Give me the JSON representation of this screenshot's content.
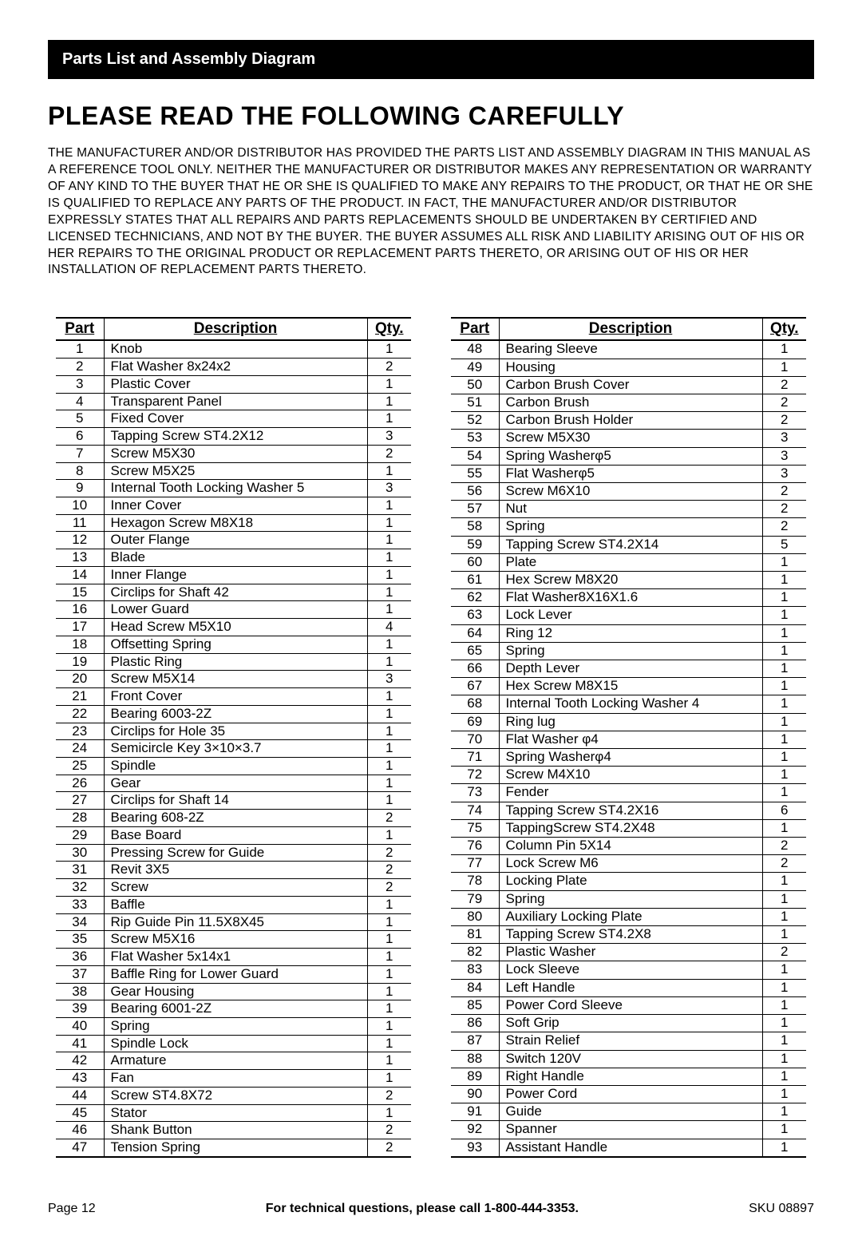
{
  "header_bar": "Parts List and Assembly Diagram",
  "main_title": "PLEASE READ THE FOLLOWING CAREFULLY",
  "disclaimer": "THE MANUFACTURER AND/OR DISTRIBUTOR HAS PROVIDED THE PARTS LIST AND ASSEMBLY DIAGRAM IN THIS MANUAL AS A REFERENCE TOOL ONLY.  NEITHER THE MANUFACTURER OR DISTRIBUTOR MAKES ANY REPRESENTATION OR WARRANTY OF ANY KIND TO THE BUYER THAT HE OR SHE IS QUALIFIED TO MAKE ANY REPAIRS TO THE PRODUCT, OR THAT HE OR SHE IS QUALIFIED TO REPLACE ANY PARTS OF THE PRODUCT.  IN FACT, THE MANUFACTURER AND/OR DISTRIBUTOR EXPRESSLY STATES THAT ALL REPAIRS AND PARTS REPLACEMENTS SHOULD BE UNDERTAKEN BY CERTIFIED AND LICENSED TECHNICIANS, AND NOT BY THE BUYER.  THE BUYER ASSUMES ALL RISK AND LIABILITY ARISING OUT OF HIS OR HER REPAIRS TO THE ORIGINAL PRODUCT OR REPLACEMENT PARTS THERETO, OR ARISING OUT OF HIS OR HER INSTALLATION OF REPLACEMENT PARTS THERETO.",
  "columns": {
    "part": "Part",
    "desc": "Description",
    "qty": "Qty."
  },
  "left_rows": [
    {
      "p": "1",
      "d": "Knob",
      "q": "1"
    },
    {
      "p": "2",
      "d": "Flat Washer 8x24x2",
      "q": "2"
    },
    {
      "p": "3",
      "d": "Plastic Cover",
      "q": "1"
    },
    {
      "p": "4",
      "d": "Transparent Panel",
      "q": "1"
    },
    {
      "p": "5",
      "d": "Fixed Cover",
      "q": "1"
    },
    {
      "p": "6",
      "d": "Tapping Screw ST4.2X12",
      "q": "3"
    },
    {
      "p": "7",
      "d": "Screw M5X30",
      "q": "2"
    },
    {
      "p": "8",
      "d": "Screw M5X25",
      "q": "1"
    },
    {
      "p": "9",
      "d": "Internal Tooth Locking Washer 5",
      "q": "3"
    },
    {
      "p": "10",
      "d": "Inner Cover",
      "q": "1"
    },
    {
      "p": "11",
      "d": "Hexagon Screw M8X18",
      "q": "1"
    },
    {
      "p": "12",
      "d": "Outer Flange",
      "q": "1"
    },
    {
      "p": "13",
      "d": "Blade",
      "q": "1"
    },
    {
      "p": "14",
      "d": "Inner Flange",
      "q": "1"
    },
    {
      "p": "15",
      "d": "Circlips for Shaft 42",
      "q": "1"
    },
    {
      "p": "16",
      "d": "Lower Guard",
      "q": "1"
    },
    {
      "p": "17",
      "d": "Head Screw M5X10",
      "q": "4"
    },
    {
      "p": "18",
      "d": "Offsetting Spring",
      "q": "1"
    },
    {
      "p": "19",
      "d": "Plastic Ring",
      "q": "1"
    },
    {
      "p": "20",
      "d": "Screw M5X14",
      "q": "3"
    },
    {
      "p": "21",
      "d": "Front Cover",
      "q": "1"
    },
    {
      "p": "22",
      "d": "Bearing 6003-2Z",
      "q": "1"
    },
    {
      "p": "23",
      "d": "Circlips for Hole 35",
      "q": "1"
    },
    {
      "p": "24",
      "d": "Semicircle Key 3×10×3.7",
      "q": "1"
    },
    {
      "p": "25",
      "d": "Spindle",
      "q": "1"
    },
    {
      "p": "26",
      "d": "Gear",
      "q": "1"
    },
    {
      "p": "27",
      "d": "Circlips for Shaft 14",
      "q": "1"
    },
    {
      "p": "28",
      "d": "Bearing 608-2Z",
      "q": "2"
    },
    {
      "p": "29",
      "d": "Base Board",
      "q": "1"
    },
    {
      "p": "30",
      "d": "Pressing Screw for Guide",
      "q": "2"
    },
    {
      "p": "31",
      "d": "Revit 3X5",
      "q": "2"
    },
    {
      "p": "32",
      "d": "Screw",
      "q": "2"
    },
    {
      "p": "33",
      "d": "Baffle",
      "q": "1"
    },
    {
      "p": "34",
      "d": "Rip Guide Pin 11.5X8X45",
      "q": "1"
    },
    {
      "p": "35",
      "d": "Screw M5X16",
      "q": "1"
    },
    {
      "p": "36",
      "d": "Flat Washer 5x14x1",
      "q": "1"
    },
    {
      "p": "37",
      "d": "Baffle Ring for Lower Guard",
      "q": "1"
    },
    {
      "p": "38",
      "d": "Gear Housing",
      "q": "1"
    },
    {
      "p": "39",
      "d": "Bearing 6001-2Z",
      "q": "1"
    },
    {
      "p": "40",
      "d": "Spring",
      "q": "1"
    },
    {
      "p": "41",
      "d": "Spindle Lock",
      "q": "1"
    },
    {
      "p": "42",
      "d": "Armature",
      "q": "1"
    },
    {
      "p": "43",
      "d": "Fan",
      "q": "1"
    },
    {
      "p": "44",
      "d": "Screw ST4.8X72",
      "q": "2"
    },
    {
      "p": "45",
      "d": "Stator",
      "q": "1"
    },
    {
      "p": "46",
      "d": "Shank Button",
      "q": "2"
    },
    {
      "p": "47",
      "d": "Tension Spring",
      "q": "2"
    }
  ],
  "right_rows": [
    {
      "p": "48",
      "d": "Bearing Sleeve",
      "q": "1"
    },
    {
      "p": "49",
      "d": "Housing",
      "q": "1"
    },
    {
      "p": "50",
      "d": "Carbon Brush Cover",
      "q": "2"
    },
    {
      "p": "51",
      "d": "Carbon Brush",
      "q": "2"
    },
    {
      "p": "52",
      "d": "Carbon Brush Holder",
      "q": "2"
    },
    {
      "p": "53",
      "d": "Screw M5X30",
      "q": "3"
    },
    {
      "p": "54",
      "d": "Spring Washerφ5",
      "q": "3"
    },
    {
      "p": "55",
      "d": "Flat Washerφ5",
      "q": "3"
    },
    {
      "p": "56",
      "d": "Screw M6X10",
      "q": "2"
    },
    {
      "p": "57",
      "d": "Nut",
      "q": "2"
    },
    {
      "p": "58",
      "d": "Spring",
      "q": "2"
    },
    {
      "p": "59",
      "d": "Tapping Screw ST4.2X14",
      "q": "5"
    },
    {
      "p": "60",
      "d": "Plate",
      "q": "1"
    },
    {
      "p": "61",
      "d": "Hex Screw M8X20",
      "q": "1"
    },
    {
      "p": "62",
      "d": "Flat Washer8X16X1.6",
      "q": "1"
    },
    {
      "p": "63",
      "d": "Lock Lever",
      "q": "1"
    },
    {
      "p": "64",
      "d": "Ring 12",
      "q": "1"
    },
    {
      "p": "65",
      "d": "Spring",
      "q": "1"
    },
    {
      "p": "66",
      "d": "Depth Lever",
      "q": "1"
    },
    {
      "p": "67",
      "d": "Hex Screw M8X15",
      "q": "1"
    },
    {
      "p": "68",
      "d": "Internal Tooth Locking Washer 4",
      "q": "1"
    },
    {
      "p": "69",
      "d": "Ring lug",
      "q": "1"
    },
    {
      "p": "70",
      "d": "Flat Washer φ4",
      "q": "1"
    },
    {
      "p": "71",
      "d": "Spring Washerφ4",
      "q": "1"
    },
    {
      "p": "72",
      "d": "Screw M4X10",
      "q": "1"
    },
    {
      "p": "73",
      "d": "Fender",
      "q": "1"
    },
    {
      "p": "74",
      "d": "Tapping Screw ST4.2X16",
      "q": "6"
    },
    {
      "p": "75",
      "d": "TappingScrew ST4.2X48",
      "q": "1"
    },
    {
      "p": "76",
      "d": "Column Pin 5X14",
      "q": "2"
    },
    {
      "p": "77",
      "d": "Lock Screw M6",
      "q": "2"
    },
    {
      "p": "78",
      "d": "Locking Plate",
      "q": "1"
    },
    {
      "p": "79",
      "d": "Spring",
      "q": "1"
    },
    {
      "p": "80",
      "d": "Auxiliary Locking Plate",
      "q": "1"
    },
    {
      "p": "81",
      "d": "Tapping Screw ST4.2X8",
      "q": "1"
    },
    {
      "p": "82",
      "d": "Plastic Washer",
      "q": "2"
    },
    {
      "p": "83",
      "d": "Lock Sleeve",
      "q": "1"
    },
    {
      "p": "84",
      "d": "Left Handle",
      "q": "1"
    },
    {
      "p": "85",
      "d": "Power Cord Sleeve",
      "q": "1"
    },
    {
      "p": "86",
      "d": "Soft Grip",
      "q": "1"
    },
    {
      "p": "87",
      "d": "Strain Relief",
      "q": "1"
    },
    {
      "p": "88",
      "d": "Switch 120V",
      "q": "1"
    },
    {
      "p": "89",
      "d": "Right Handle",
      "q": "1"
    },
    {
      "p": "90",
      "d": "Power Cord",
      "q": "1"
    },
    {
      "p": "91",
      "d": "Guide",
      "q": "1"
    },
    {
      "p": "92",
      "d": "Spanner",
      "q": "1"
    },
    {
      "p": "93",
      "d": "Assistant Handle",
      "q": "1"
    }
  ],
  "footer": {
    "left": "Page 12",
    "center": "For technical questions, please call 1-800-444-3353.",
    "right": "SKU 08897"
  }
}
